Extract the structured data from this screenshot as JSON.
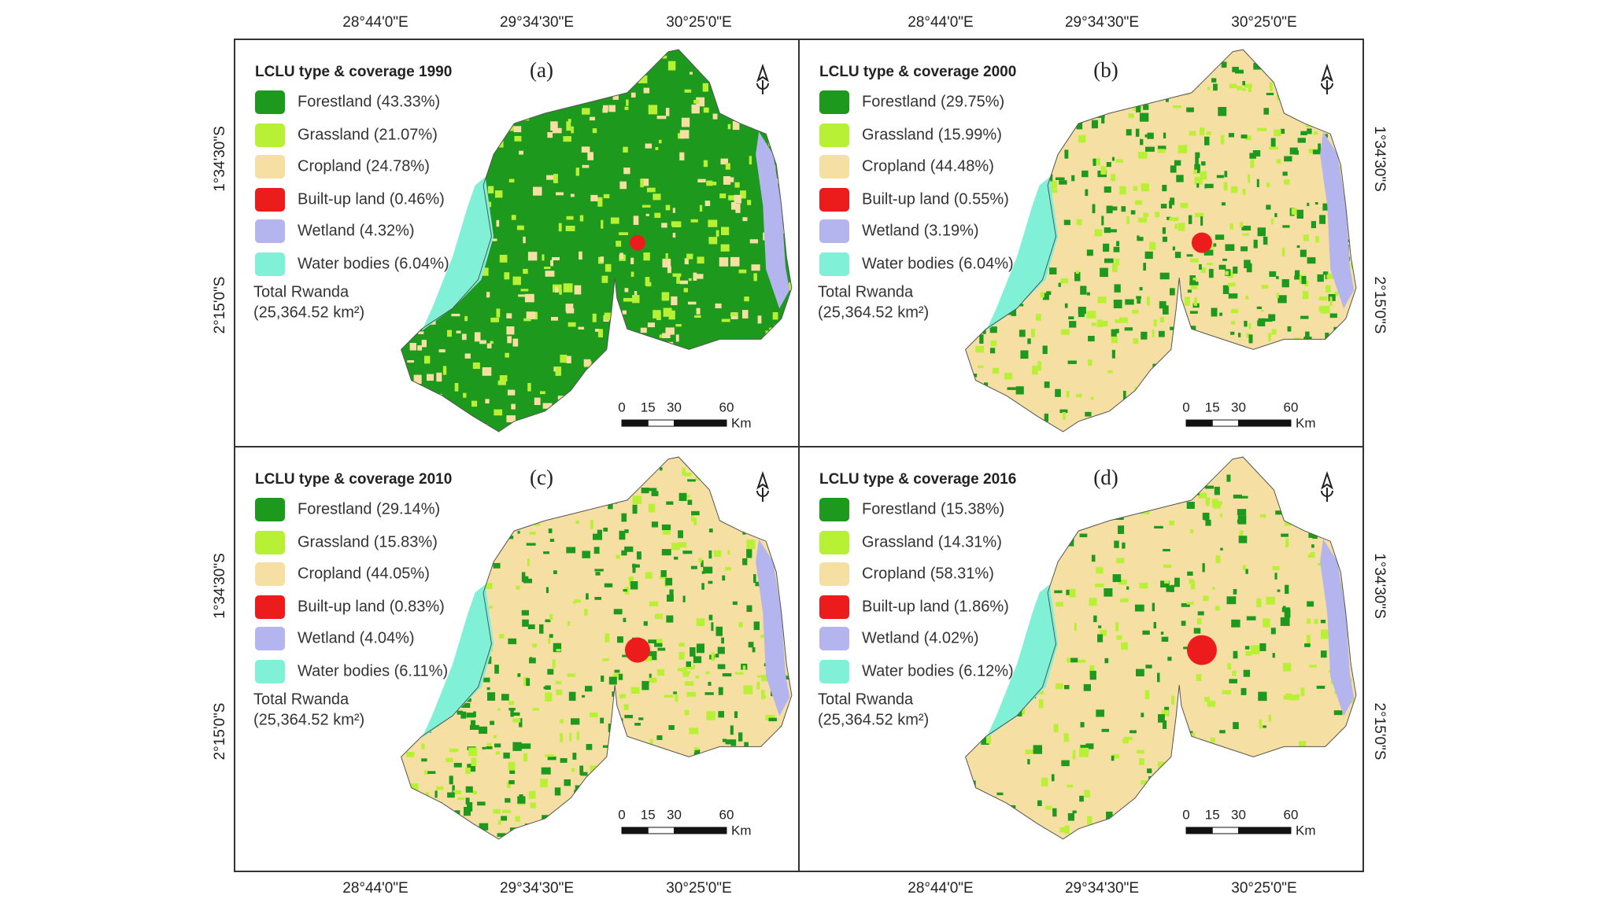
{
  "top_labels": [
    "28°44'0\"E",
    "29°34'30\"E",
    "30°25'0\"E",
    "28°44'0\"E",
    "29°34'30\"E",
    "30°25'0\"E"
  ],
  "bottom_labels": [
    "28°44'0\"E",
    "29°34'30\"E",
    "30°25'0\"E",
    "28°44'0\"E",
    "29°34'30\"E",
    "30°25'0\"E"
  ],
  "left_labels": [
    "1°34'30\"S",
    "2°15'0\"S",
    "1°34'30\"S",
    "2°15'0\"S"
  ],
  "right_labels": [
    "1°34'30\"S",
    "2°15'0\"S",
    "1°34'30\"S",
    "2°15'0\"S"
  ],
  "panels": [
    {
      "title": "LCLU type & coverage 1990",
      "letter": "(a)",
      "legend": [
        {
          "label": "Forestland (43.33%)",
          "color": "#1d9a1d"
        },
        {
          "label": "Grassland (21.07%)",
          "color": "#b8f035"
        },
        {
          "label": "Cropland (24.78%)",
          "color": "#f6dfa2"
        },
        {
          "label": "Built-up land (0.46%)",
          "color": "#ec1c1c"
        },
        {
          "label": "Wetland (4.32%)",
          "color": "#b4b4ee"
        },
        {
          "label": "Water bodies (6.04%)",
          "color": "#80f0d6"
        }
      ],
      "total": [
        "Total Rwanda",
        "(25,364.52 km²)"
      ],
      "scale": {
        "ticks": [
          0,
          15,
          30,
          60
        ],
        "unit": "Km"
      }
    },
    {
      "title": "LCLU type & coverage 2000",
      "letter": "(b)",
      "legend": [
        {
          "label": "Forestland (29.75%)",
          "color": "#1d9a1d"
        },
        {
          "label": "Grassland (15.99%)",
          "color": "#b8f035"
        },
        {
          "label": "Cropland (44.48%)",
          "color": "#f6dfa2"
        },
        {
          "label": "Built-up land (0.55%)",
          "color": "#ec1c1c"
        },
        {
          "label": "Wetland (3.19%)",
          "color": "#b4b4ee"
        },
        {
          "label": "Water bodies (6.04%)",
          "color": "#80f0d6"
        }
      ],
      "total": [
        "Total Rwanda",
        "(25,364.52 km²)"
      ],
      "scale": {
        "ticks": [
          0,
          15,
          30,
          60
        ],
        "unit": "Km"
      }
    },
    {
      "title": "LCLU type & coverage 2010",
      "letter": "(c)",
      "legend": [
        {
          "label": "Forestland (29.14%)",
          "color": "#1d9a1d"
        },
        {
          "label": "Grassland (15.83%)",
          "color": "#b8f035"
        },
        {
          "label": "Cropland (44.05%)",
          "color": "#f6dfa2"
        },
        {
          "label": "Built-up land (0.83%)",
          "color": "#ec1c1c"
        },
        {
          "label": "Wetland (4.04%)",
          "color": "#b4b4ee"
        },
        {
          "label": "Water bodies (6.11%)",
          "color": "#80f0d6"
        }
      ],
      "total": [
        "Total Rwanda",
        "(25,364.52 km²)"
      ],
      "scale": {
        "ticks": [
          0,
          15,
          30,
          60
        ],
        "unit": "Km"
      }
    },
    {
      "title": "LCLU type & coverage 2016",
      "letter": "(d)",
      "legend": [
        {
          "label": "Forestland (15.38%)",
          "color": "#1d9a1d"
        },
        {
          "label": "Grassland (14.31%)",
          "color": "#b8f035"
        },
        {
          "label": "Cropland (58.31%)",
          "color": "#f6dfa2"
        },
        {
          "label": "Built-up land (1.86%)",
          "color": "#ec1c1c"
        },
        {
          "label": "Wetland (4.02%)",
          "color": "#b4b4ee"
        },
        {
          "label": "Water bodies (6.12%)",
          "color": "#80f0d6"
        }
      ],
      "total": [
        "Total Rwanda",
        "(25,364.52 km²)"
      ],
      "scale": {
        "ticks": [
          0,
          15,
          30,
          60
        ],
        "unit": "Km"
      }
    }
  ]
}
